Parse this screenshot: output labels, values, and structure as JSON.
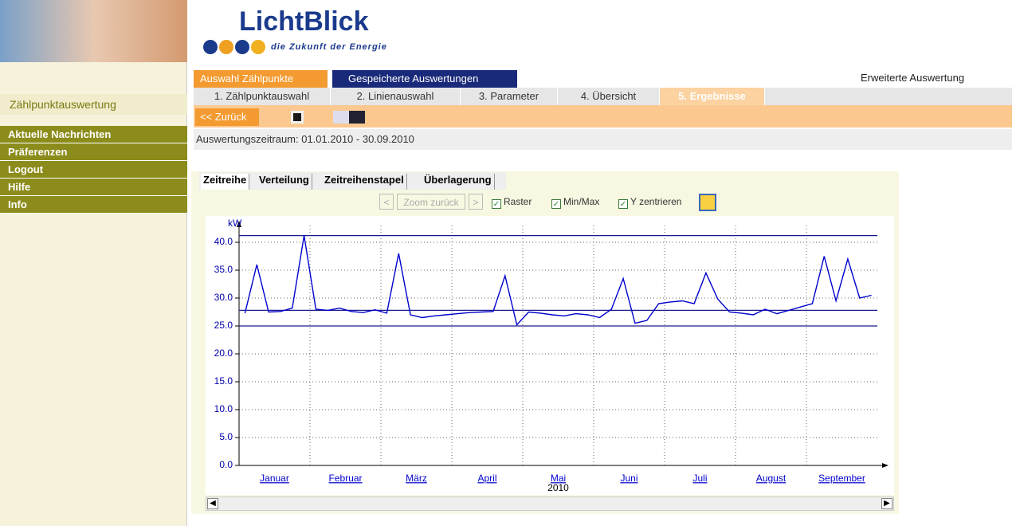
{
  "header": {
    "logo": "LichtBlick",
    "slogan": "die Zukunft der Energie"
  },
  "sidebar": {
    "title": "Zählpunktauswertung",
    "menu": [
      "Aktuelle Nachrichten",
      "Präferenzen",
      "Logout",
      "Hilfe",
      "Info"
    ]
  },
  "tabs": [
    "Auswahl Zählpunkte",
    "Gespeicherte Auswertungen"
  ],
  "extended": "Erweiterte Auswertung",
  "steps": [
    "1. Zählpunktauswahl",
    "2. Linienauswahl",
    "3. Parameter",
    "4. Übersicht",
    "5. Ergebnisse"
  ],
  "toolbar": {
    "back": "<< Zurück"
  },
  "period": "Auswertungszeitraum: 01.01.2010 - 30.09.2010",
  "view_tabs": [
    "Zeitreihe",
    "Verteilung",
    "Zeitreihenstapel",
    "Überlagerung"
  ],
  "controls": {
    "prev": "<",
    "zoom_back": "Zoom zurück",
    "next": ">",
    "options": [
      "Raster",
      "Min/Max",
      "Y zentrieren"
    ]
  },
  "chart_data": {
    "type": "line",
    "y_label": "kW",
    "year_label": "2010",
    "categories": [
      "Januar",
      null,
      null,
      null,
      null,
      null,
      "Februar",
      null,
      null,
      null,
      null,
      null,
      "März",
      null,
      null,
      null,
      null,
      null,
      "April",
      null,
      null,
      null,
      null,
      null,
      "Mai",
      null,
      null,
      null,
      null,
      null,
      "Juni",
      null,
      null,
      null,
      null,
      null,
      "Juli",
      null,
      null,
      null,
      null,
      null,
      "August",
      null,
      null,
      null,
      null,
      null,
      "September",
      null,
      null,
      null,
      null,
      null
    ],
    "values": [
      27.3,
      36.0,
      27.5,
      27.6,
      28.2,
      41.2,
      28.0,
      27.8,
      28.2,
      27.6,
      27.4,
      27.9,
      27.3,
      38.0,
      27.0,
      26.5,
      26.8,
      27.0,
      27.2,
      27.4,
      27.5,
      27.6,
      34.0,
      25.2,
      27.5,
      27.3,
      27.0,
      26.8,
      27.2,
      27.0,
      26.5,
      28.0,
      33.5,
      25.5,
      26.0,
      29.0,
      29.3,
      29.5,
      29.0,
      34.5,
      29.8,
      27.5,
      27.3,
      27.0,
      28.0,
      27.2,
      27.8,
      28.4,
      29.0,
      37.5,
      29.5,
      37.0,
      30.0,
      30.5
    ],
    "color": "#0000cc",
    "reference_lines": {
      "max": 41.2,
      "mean": 27.8,
      "min": 25.0
    },
    "reference_color": "#1a1a8c",
    "ylim": [
      0,
      43
    ],
    "yticks": [
      {
        "value": 0,
        "label": "0.0"
      },
      {
        "value": 5,
        "label": "5.0"
      },
      {
        "value": 10,
        "label": "10.0"
      },
      {
        "value": 15,
        "label": "15.0"
      },
      {
        "value": 20,
        "label": "20.0"
      },
      {
        "value": 25,
        "label": "25.0"
      },
      {
        "value": 30,
        "label": "30.0"
      },
      {
        "value": 35,
        "label": "35.0"
      },
      {
        "value": 40,
        "label": "40.0"
      }
    ],
    "grid": true
  }
}
